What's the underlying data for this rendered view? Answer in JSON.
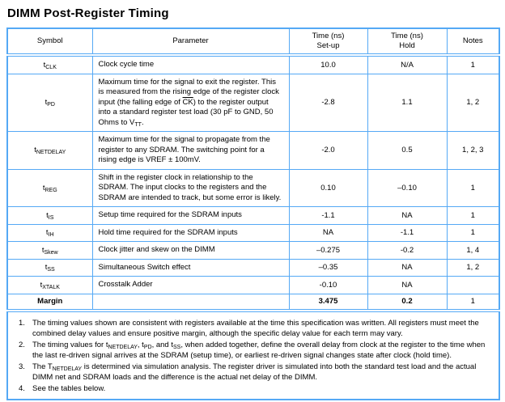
{
  "colors": {
    "table_border": "#55a9f5",
    "text": "#000000",
    "background": "#ffffff"
  },
  "title": "DIMM Post-Register Timing",
  "table": {
    "headers": {
      "symbol": "Symbol",
      "parameter": "Parameter",
      "setup_line1": "Time (ns)",
      "setup_line2": "Set-up",
      "hold_line1": "Time (ns)",
      "hold_line2": "Hold",
      "notes": "Notes"
    },
    "rows": [
      {
        "symbol_base": "t",
        "symbol_sub": "CLK",
        "parameter": [
          {
            "text": "Clock cycle time"
          }
        ],
        "setup": "10.0",
        "hold": "N/A",
        "notes": "1"
      },
      {
        "symbol_base": "t",
        "symbol_sub": "PD",
        "parameter": [
          {
            "text": "Maximum time for the signal to exit the register. This is measured from the rising edge of the register clock input (the falling edge of "
          },
          {
            "overline": "CK"
          },
          {
            "text": ") to the register output into a standard register test load (30 pF to GND, 50 Ohms to V"
          },
          {
            "sub": "TT"
          },
          {
            "text": "."
          }
        ],
        "setup": "-2.8",
        "hold": "1.1",
        "notes": "1, 2"
      },
      {
        "symbol_base": "t",
        "symbol_sub": "NETDELAY",
        "parameter": [
          {
            "text": "Maximum time for the signal to propagate from the register to any SDRAM. The switching point for a rising edge is VREF ± 100mV."
          }
        ],
        "setup": "-2.0",
        "hold": "0.5",
        "notes": "1, 2, 3"
      },
      {
        "symbol_base": "t",
        "symbol_sub": "REG",
        "parameter": [
          {
            "text": "Shift in the register clock in relationship to the SDRAM. The input clocks to the registers and the SDRAM are intended to track, but some error is likely."
          }
        ],
        "setup": "0.10",
        "hold": "–0.10",
        "notes": "1"
      },
      {
        "symbol_base": "t",
        "symbol_sub": "IS",
        "parameter": [
          {
            "text": "Setup time required for the SDRAM inputs"
          }
        ],
        "setup": "-1.1",
        "hold": "NA",
        "notes": "1"
      },
      {
        "symbol_base": "t",
        "symbol_sub": "IH",
        "parameter": [
          {
            "text": "Hold time required for the SDRAM inputs"
          }
        ],
        "setup": "NA",
        "hold": "-1.1",
        "notes": "1"
      },
      {
        "symbol_base": "t",
        "symbol_sub": "Skew",
        "parameter": [
          {
            "text": "Clock jitter and skew on the DIMM"
          }
        ],
        "setup": "–0.275",
        "hold": "-0.2",
        "notes": "1, 4"
      },
      {
        "symbol_base": "t",
        "symbol_sub": "SS",
        "parameter": [
          {
            "text": "Simultaneous Switch effect"
          }
        ],
        "setup": "–0.35",
        "hold": "NA",
        "notes": "1, 2"
      },
      {
        "symbol_base": "t",
        "symbol_sub": "XTALK",
        "parameter": [
          {
            "text": "Crosstalk Adder"
          }
        ],
        "setup": "-0.10",
        "hold": "NA",
        "notes": ""
      },
      {
        "symbol_base": "Margin",
        "symbol_sub": "",
        "parameter": [],
        "setup": "3.475",
        "hold": "0.2",
        "notes": "1"
      }
    ]
  },
  "footnotes": [
    {
      "number": "1.",
      "segments": [
        {
          "text": "The timing values shown are consistent with registers available at the time this specification was written. All registers must meet the combined delay values and ensure positive margin, although the specific delay value for each term may vary."
        }
      ]
    },
    {
      "number": "2.",
      "segments": [
        {
          "text": "The timing values for t"
        },
        {
          "sub": "NETDELAY"
        },
        {
          "text": ", t"
        },
        {
          "sub": "PD"
        },
        {
          "text": ", and t"
        },
        {
          "sub": "SS"
        },
        {
          "text": ", when added together, define the overall delay from clock at the register to the time when the last re-driven signal arrives at the SDRAM (setup time), or earliest re-driven signal changes state after clock (hold time)."
        }
      ]
    },
    {
      "number": "3.",
      "segments": [
        {
          "text": "The T"
        },
        {
          "sub": "NETDELAY"
        },
        {
          "text": " is determined via simulation analysis. The register driver is simulated into both the standard test load and the actual DIMM net and SDRAM loads and the difference is the actual net delay of the DIMM."
        }
      ]
    },
    {
      "number": "4.",
      "segments": [
        {
          "text": "See the tables below."
        }
      ]
    }
  ]
}
